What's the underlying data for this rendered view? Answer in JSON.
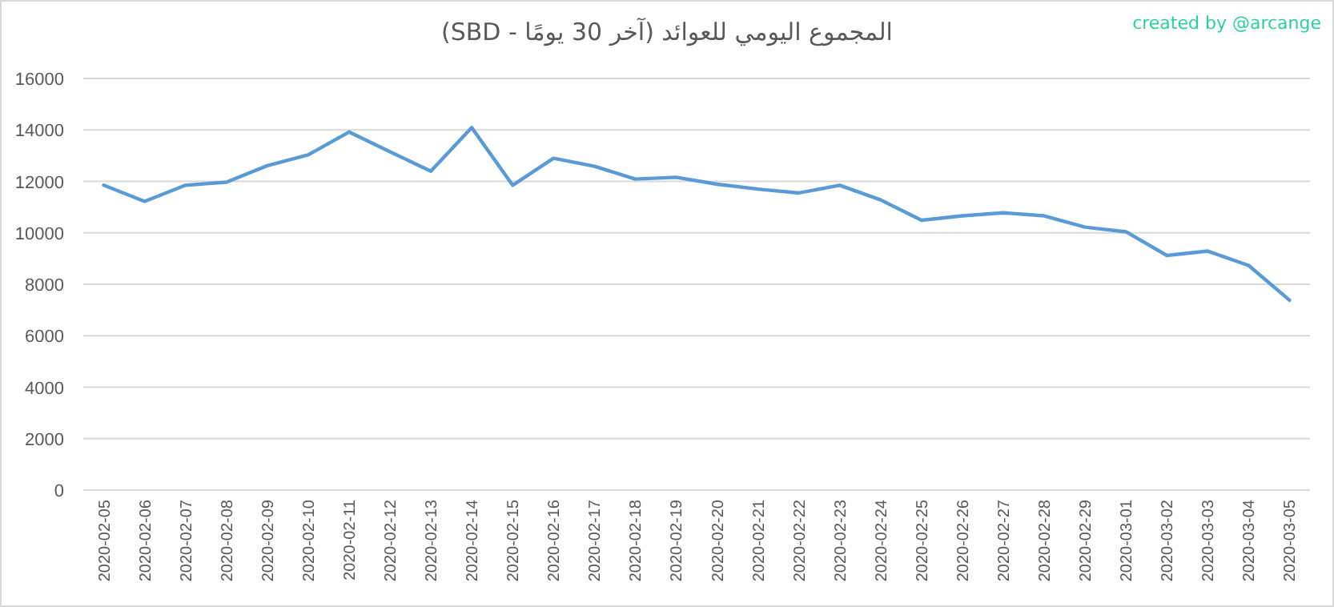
{
  "chart_data": {
    "type": "line",
    "title": "المجموع اليومي للعوائد (آخر 30 يومًا - SBD)",
    "annotations": [
      "created by @arcange"
    ],
    "categories": [
      "2020-02-05",
      "2020-02-06",
      "2020-02-07",
      "2020-02-08",
      "2020-02-09",
      "2020-02-10",
      "2020-02-11",
      "2020-02-12",
      "2020-02-13",
      "2020-02-14",
      "2020-02-15",
      "2020-02-16",
      "2020-02-17",
      "2020-02-18",
      "2020-02-19",
      "2020-02-20",
      "2020-02-21",
      "2020-02-22",
      "2020-02-23",
      "2020-02-24",
      "2020-02-25",
      "2020-02-26",
      "2020-02-27",
      "2020-02-28",
      "2020-02-29",
      "2020-03-01",
      "2020-03-02",
      "2020-03-03",
      "2020-03-04",
      "2020-03-05"
    ],
    "values": [
      11850,
      11220,
      11850,
      11970,
      12610,
      13030,
      13920,
      13150,
      12400,
      14090,
      11850,
      12900,
      12590,
      12090,
      12160,
      11890,
      11700,
      11550,
      11850,
      11280,
      10490,
      10660,
      10780,
      10660,
      10220,
      10040,
      9120,
      9290,
      8730,
      7380
    ],
    "color": "#5b9bd5",
    "ylim": [
      0,
      16000
    ],
    "yticks": [
      0,
      2000,
      4000,
      6000,
      8000,
      10000,
      12000,
      14000,
      16000
    ],
    "grid": "y"
  }
}
